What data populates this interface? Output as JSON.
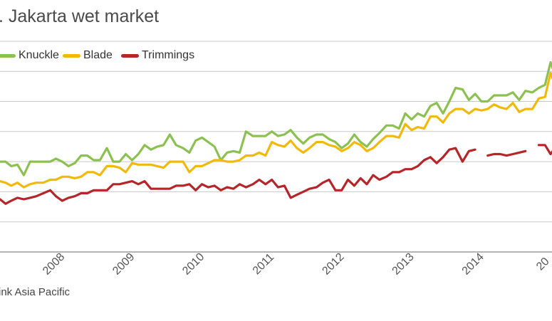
{
  "chart_data": {
    "type": "line",
    "title": ". Jakarta wet market",
    "legend_position": "top-left",
    "grid": true,
    "x_ticks": [
      "2008",
      "2009",
      "2010",
      "2011",
      "2012",
      "2013",
      "2014",
      "20"
    ],
    "xlim": [
      2007.2,
      2015.1
    ],
    "ylim": [
      0,
      8
    ],
    "series": [
      {
        "name": "Knuckle",
        "color": "#8cc152",
        "points": [
          [
            2007.2,
            3.0
          ],
          [
            2007.28,
            3.0
          ],
          [
            2007.36,
            2.85
          ],
          [
            2007.45,
            2.9
          ],
          [
            2007.54,
            2.55
          ],
          [
            2007.63,
            3.0
          ],
          [
            2007.72,
            3.0
          ],
          [
            2007.82,
            3.0
          ],
          [
            2007.92,
            3.0
          ],
          [
            2008.0,
            3.1
          ],
          [
            2008.09,
            3.0
          ],
          [
            2008.18,
            2.85
          ],
          [
            2008.27,
            2.95
          ],
          [
            2008.36,
            3.2
          ],
          [
            2008.45,
            3.2
          ],
          [
            2008.54,
            3.05
          ],
          [
            2008.63,
            3.05
          ],
          [
            2008.73,
            3.45
          ],
          [
            2008.82,
            3.0
          ],
          [
            2008.91,
            3.0
          ],
          [
            2009.0,
            3.25
          ],
          [
            2009.09,
            3.05
          ],
          [
            2009.18,
            3.25
          ],
          [
            2009.27,
            3.55
          ],
          [
            2009.36,
            3.4
          ],
          [
            2009.45,
            3.5
          ],
          [
            2009.54,
            3.55
          ],
          [
            2009.63,
            3.9
          ],
          [
            2009.72,
            3.55
          ],
          [
            2009.82,
            3.45
          ],
          [
            2009.91,
            3.3
          ],
          [
            2010.0,
            3.7
          ],
          [
            2010.09,
            3.8
          ],
          [
            2010.18,
            3.65
          ],
          [
            2010.27,
            3.5
          ],
          [
            2010.36,
            3.05
          ],
          [
            2010.45,
            3.3
          ],
          [
            2010.54,
            3.35
          ],
          [
            2010.63,
            3.3
          ],
          [
            2010.72,
            4.0
          ],
          [
            2010.82,
            3.85
          ],
          [
            2010.91,
            3.85
          ],
          [
            2011.0,
            3.85
          ],
          [
            2011.09,
            4.0
          ],
          [
            2011.18,
            3.85
          ],
          [
            2011.27,
            3.9
          ],
          [
            2011.36,
            4.05
          ],
          [
            2011.45,
            3.8
          ],
          [
            2011.54,
            3.6
          ],
          [
            2011.63,
            3.8
          ],
          [
            2011.73,
            3.9
          ],
          [
            2011.82,
            3.9
          ],
          [
            2011.91,
            3.75
          ],
          [
            2012.0,
            3.65
          ],
          [
            2012.09,
            3.45
          ],
          [
            2012.18,
            3.6
          ],
          [
            2012.27,
            3.9
          ],
          [
            2012.36,
            3.65
          ],
          [
            2012.45,
            3.5
          ],
          [
            2012.54,
            3.75
          ],
          [
            2012.63,
            3.95
          ],
          [
            2012.73,
            4.2
          ],
          [
            2012.82,
            4.2
          ],
          [
            2012.91,
            4.1
          ],
          [
            2013.0,
            4.6
          ],
          [
            2013.09,
            4.4
          ],
          [
            2013.18,
            4.6
          ],
          [
            2013.27,
            4.5
          ],
          [
            2013.36,
            4.85
          ],
          [
            2013.45,
            4.95
          ],
          [
            2013.54,
            4.6
          ],
          [
            2013.63,
            5.0
          ],
          [
            2013.72,
            5.45
          ],
          [
            2013.82,
            5.4
          ],
          [
            2013.91,
            5.05
          ],
          [
            2014.0,
            5.25
          ],
          [
            2014.09,
            5.0
          ],
          [
            2014.18,
            5.0
          ],
          [
            2014.27,
            5.2
          ],
          [
            2014.36,
            5.2
          ],
          [
            2014.45,
            5.2
          ],
          [
            2014.54,
            5.3
          ],
          [
            2014.63,
            5.05
          ],
          [
            2014.72,
            5.35
          ],
          [
            2014.82,
            5.3
          ],
          [
            2014.91,
            5.45
          ],
          [
            2015.0,
            5.55
          ],
          [
            2015.08,
            6.3
          ],
          [
            2015.17,
            5.7
          ],
          [
            2015.25,
            5.45
          ],
          [
            2015.33,
            5.6
          ],
          [
            2015.4,
            5.8
          ]
        ]
      },
      {
        "name": "Blade",
        "color": "#f2b90d",
        "points": [
          [
            2007.2,
            2.35
          ],
          [
            2007.28,
            2.3
          ],
          [
            2007.36,
            2.2
          ],
          [
            2007.45,
            2.3
          ],
          [
            2007.54,
            2.15
          ],
          [
            2007.63,
            2.25
          ],
          [
            2007.72,
            2.3
          ],
          [
            2007.82,
            2.3
          ],
          [
            2007.92,
            2.4
          ],
          [
            2008.0,
            2.4
          ],
          [
            2008.09,
            2.5
          ],
          [
            2008.18,
            2.5
          ],
          [
            2008.27,
            2.45
          ],
          [
            2008.36,
            2.5
          ],
          [
            2008.45,
            2.65
          ],
          [
            2008.54,
            2.65
          ],
          [
            2008.63,
            2.55
          ],
          [
            2008.73,
            2.85
          ],
          [
            2008.82,
            2.85
          ],
          [
            2008.91,
            2.8
          ],
          [
            2009.0,
            2.65
          ],
          [
            2009.09,
            2.95
          ],
          [
            2009.18,
            2.9
          ],
          [
            2009.27,
            2.9
          ],
          [
            2009.36,
            2.9
          ],
          [
            2009.45,
            2.85
          ],
          [
            2009.54,
            2.8
          ],
          [
            2009.63,
            3.0
          ],
          [
            2009.72,
            3.0
          ],
          [
            2009.82,
            3.0
          ],
          [
            2009.91,
            2.65
          ],
          [
            2010.0,
            2.85
          ],
          [
            2010.09,
            2.85
          ],
          [
            2010.18,
            2.95
          ],
          [
            2010.27,
            3.05
          ],
          [
            2010.36,
            3.05
          ],
          [
            2010.45,
            3.0
          ],
          [
            2010.54,
            3.0
          ],
          [
            2010.63,
            3.05
          ],
          [
            2010.72,
            3.2
          ],
          [
            2010.82,
            3.2
          ],
          [
            2010.91,
            3.3
          ],
          [
            2011.0,
            3.2
          ],
          [
            2011.09,
            3.65
          ],
          [
            2011.18,
            3.55
          ],
          [
            2011.27,
            3.5
          ],
          [
            2011.36,
            3.7
          ],
          [
            2011.45,
            3.45
          ],
          [
            2011.54,
            3.3
          ],
          [
            2011.63,
            3.45
          ],
          [
            2011.73,
            3.65
          ],
          [
            2011.82,
            3.65
          ],
          [
            2011.91,
            3.55
          ],
          [
            2012.0,
            3.5
          ],
          [
            2012.09,
            3.35
          ],
          [
            2012.18,
            3.45
          ],
          [
            2012.27,
            3.65
          ],
          [
            2012.36,
            3.55
          ],
          [
            2012.45,
            3.35
          ],
          [
            2012.54,
            3.45
          ],
          [
            2012.63,
            3.65
          ],
          [
            2012.73,
            3.85
          ],
          [
            2012.82,
            3.85
          ],
          [
            2012.91,
            3.8
          ],
          [
            2013.0,
            4.25
          ],
          [
            2013.09,
            4.05
          ],
          [
            2013.18,
            4.15
          ],
          [
            2013.27,
            4.1
          ],
          [
            2013.36,
            4.5
          ],
          [
            2013.45,
            4.5
          ],
          [
            2013.54,
            4.3
          ],
          [
            2013.63,
            4.6
          ],
          [
            2013.72,
            4.75
          ],
          [
            2013.82,
            4.75
          ],
          [
            2013.91,
            4.6
          ],
          [
            2014.0,
            4.75
          ],
          [
            2014.09,
            4.7
          ],
          [
            2014.18,
            4.75
          ],
          [
            2014.27,
            4.9
          ],
          [
            2014.36,
            4.8
          ],
          [
            2014.45,
            4.75
          ],
          [
            2014.54,
            4.95
          ],
          [
            2014.63,
            4.65
          ],
          [
            2014.72,
            4.75
          ],
          [
            2014.82,
            4.75
          ],
          [
            2014.91,
            5.1
          ],
          [
            2015.0,
            5.15
          ],
          [
            2015.08,
            5.95
          ],
          [
            2015.17,
            5.4
          ],
          [
            2015.25,
            5.1
          ],
          [
            2015.33,
            5.0
          ],
          [
            2015.4,
            5.0
          ]
        ]
      },
      {
        "name": "Trimmings",
        "color": "#b5262a",
        "points": [
          [
            2007.2,
            1.75
          ],
          [
            2007.28,
            1.6
          ],
          [
            2007.36,
            1.7
          ],
          [
            2007.45,
            1.8
          ],
          [
            2007.54,
            1.75
          ],
          [
            2007.63,
            1.8
          ],
          [
            2007.72,
            1.85
          ],
          [
            2007.82,
            1.95
          ],
          [
            2007.92,
            2.05
          ],
          [
            2008.0,
            1.85
          ],
          [
            2008.09,
            1.7
          ],
          [
            2008.18,
            1.8
          ],
          [
            2008.27,
            1.85
          ],
          [
            2008.36,
            1.95
          ],
          [
            2008.45,
            1.95
          ],
          [
            2008.54,
            2.05
          ],
          [
            2008.63,
            2.05
          ],
          [
            2008.73,
            2.05
          ],
          [
            2008.82,
            2.25
          ],
          [
            2008.91,
            2.25
          ],
          [
            2009.0,
            2.3
          ],
          [
            2009.09,
            2.35
          ],
          [
            2009.18,
            2.25
          ],
          [
            2009.27,
            2.35
          ],
          [
            2009.36,
            2.1
          ],
          [
            2009.45,
            2.1
          ],
          [
            2009.54,
            2.1
          ],
          [
            2009.63,
            2.1
          ],
          [
            2009.72,
            2.2
          ],
          [
            2009.82,
            2.2
          ],
          [
            2009.91,
            2.25
          ],
          [
            2010.0,
            2.05
          ],
          [
            2010.09,
            2.25
          ],
          [
            2010.18,
            2.15
          ],
          [
            2010.27,
            2.2
          ],
          [
            2010.36,
            2.05
          ],
          [
            2010.45,
            2.15
          ],
          [
            2010.54,
            2.1
          ],
          [
            2010.63,
            2.25
          ],
          [
            2010.72,
            2.15
          ],
          [
            2010.82,
            2.25
          ],
          [
            2010.91,
            2.4
          ],
          [
            2011.0,
            2.25
          ],
          [
            2011.09,
            2.4
          ],
          [
            2011.18,
            2.15
          ],
          [
            2011.27,
            2.2
          ],
          [
            2011.36,
            1.8
          ],
          [
            2011.45,
            1.9
          ],
          [
            2011.54,
            2.0
          ],
          [
            2011.63,
            2.1
          ],
          [
            2011.73,
            2.15
          ],
          [
            2011.82,
            2.3
          ],
          [
            2011.91,
            2.4
          ],
          [
            2012.0,
            2.05
          ],
          [
            2012.09,
            2.05
          ],
          [
            2012.18,
            2.4
          ],
          [
            2012.27,
            2.2
          ],
          [
            2012.36,
            2.45
          ],
          [
            2012.45,
            2.25
          ],
          [
            2012.54,
            2.55
          ],
          [
            2012.63,
            2.4
          ],
          [
            2012.73,
            2.5
          ],
          [
            2012.82,
            2.65
          ],
          [
            2012.91,
            2.65
          ],
          [
            2013.0,
            2.75
          ],
          [
            2013.09,
            2.75
          ],
          [
            2013.18,
            2.85
          ],
          [
            2013.27,
            3.05
          ],
          [
            2013.36,
            3.15
          ],
          [
            2013.45,
            2.95
          ],
          [
            2013.54,
            3.15
          ],
          [
            2013.63,
            3.4
          ],
          [
            2013.72,
            3.45
          ],
          [
            2013.82,
            3.0
          ],
          [
            2013.91,
            3.35
          ],
          [
            2014.0,
            3.4
          ],
          [
            null,
            null
          ],
          [
            2014.18,
            3.2
          ],
          [
            2014.27,
            3.25
          ],
          [
            2014.36,
            3.25
          ],
          [
            2014.45,
            3.2
          ],
          [
            2014.54,
            3.25
          ],
          [
            2014.63,
            3.3
          ],
          [
            2014.72,
            3.35
          ],
          [
            null,
            null
          ],
          [
            2014.91,
            3.55
          ],
          [
            2015.0,
            3.55
          ],
          [
            2015.08,
            3.25
          ],
          [
            2015.17,
            3.55
          ],
          [
            2015.25,
            3.6
          ],
          [
            2015.33,
            3.4
          ],
          [
            2015.4,
            3.8
          ]
        ]
      }
    ],
    "source_text": "ink Asia Pacific"
  }
}
